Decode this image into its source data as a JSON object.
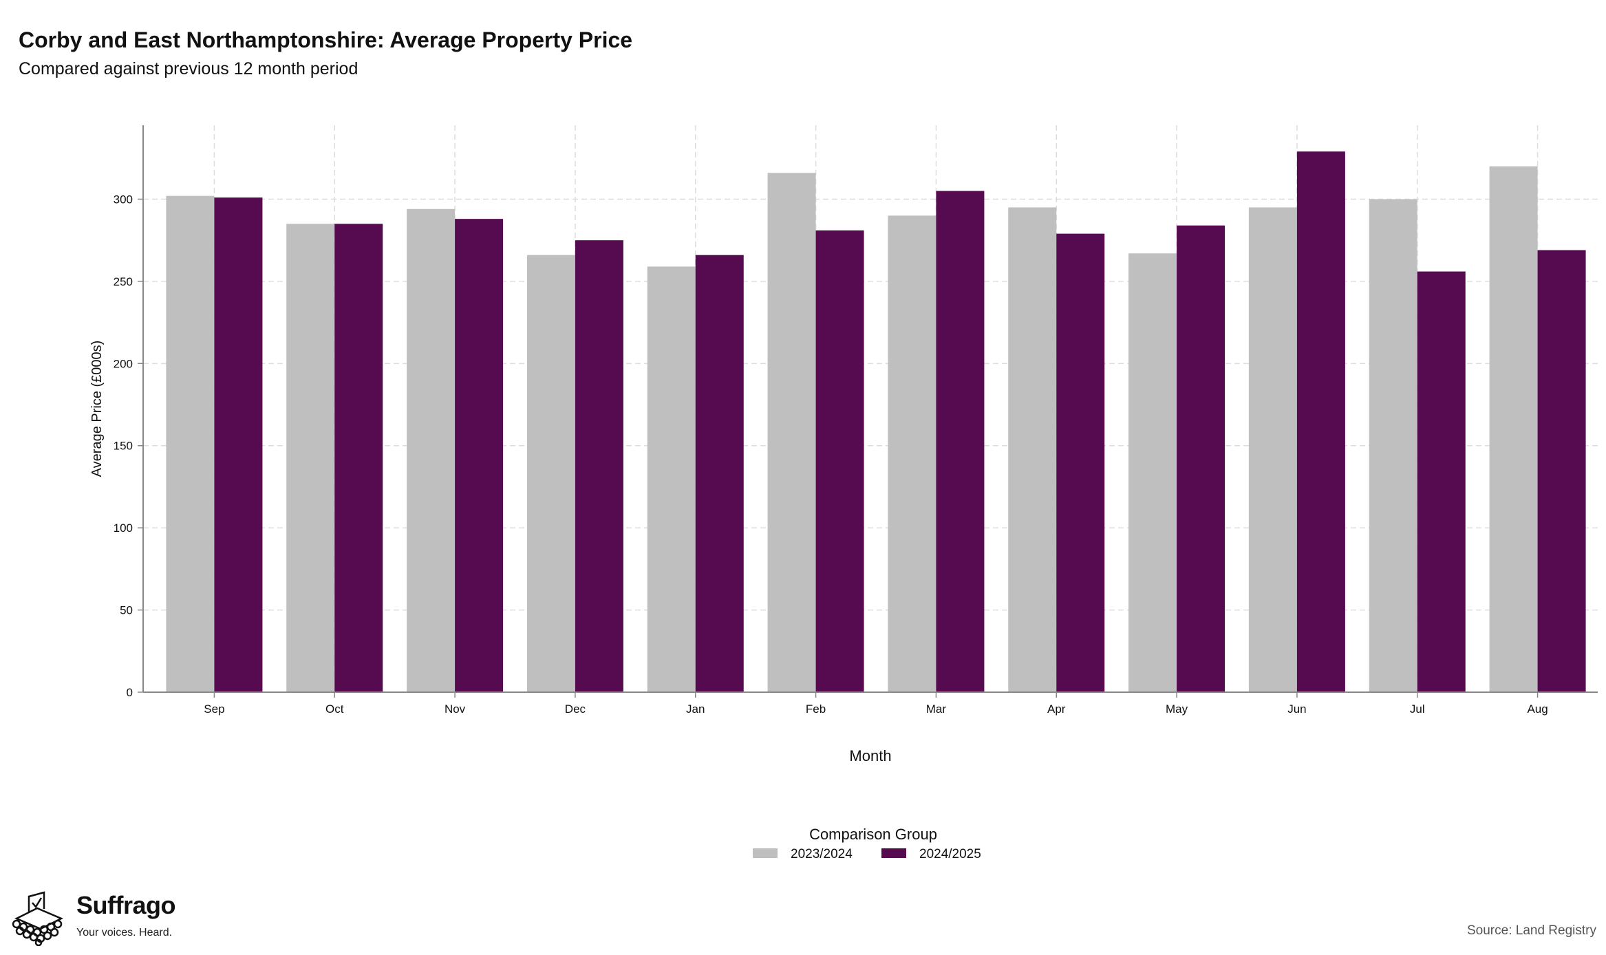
{
  "header": {
    "title": "Corby and East Northamptonshire: Average Property Price",
    "subtitle": "Compared against previous 12 month period"
  },
  "branding": {
    "name": "Suffrago",
    "tagline": "Your voices. Heard.",
    "logo_icon": "ballot-box-crowd-icon"
  },
  "footer": {
    "source": "Source: Land Registry"
  },
  "colors": {
    "series_2023_2024": "#bfbfbf",
    "series_2024_2025": "#560b51",
    "grid": "#dddddd",
    "axis": "#888888"
  },
  "chart_data": {
    "type": "bar",
    "title": "Corby and East Northamptonshire: Average Property Price",
    "subtitle": "Compared against previous 12 month period",
    "xlabel": "Month",
    "ylabel": "Average Price (£000s)",
    "categories": [
      "Sep",
      "Oct",
      "Nov",
      "Dec",
      "Jan",
      "Feb",
      "Mar",
      "Apr",
      "May",
      "Jun",
      "Jul",
      "Aug"
    ],
    "series": [
      {
        "name": "2023/2024",
        "color": "#bfbfbf",
        "values": [
          302,
          285,
          294,
          266,
          259,
          316,
          290,
          295,
          267,
          295,
          300,
          320
        ]
      },
      {
        "name": "2024/2025",
        "color": "#560b51",
        "values": [
          301,
          285,
          288,
          275,
          266,
          281,
          305,
          279,
          284,
          329,
          256,
          269
        ]
      }
    ],
    "ylim": [
      0,
      345
    ],
    "yticks": [
      0,
      50,
      100,
      150,
      200,
      250,
      300
    ],
    "grid": true,
    "legend": {
      "title": "Comparison Group",
      "placement": "bottom-center"
    }
  }
}
